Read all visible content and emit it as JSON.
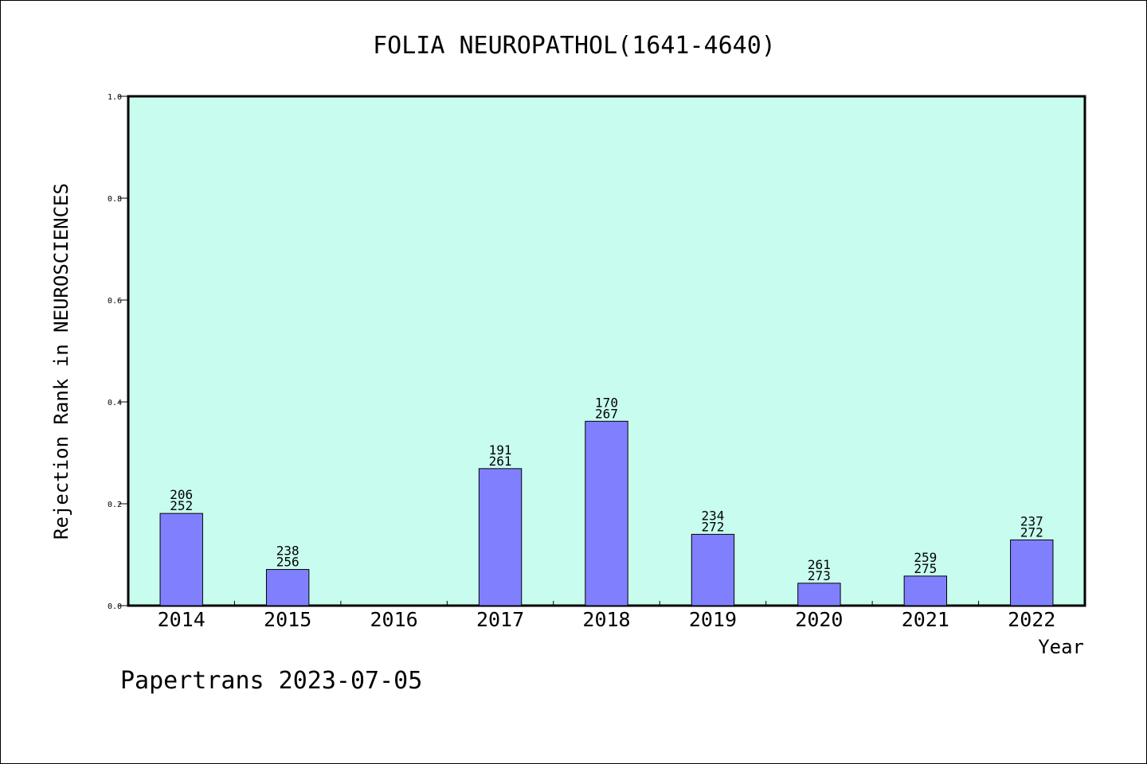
{
  "chart_data": {
    "type": "bar",
    "title": "FOLIA NEUROPATHOL(1641-4640)",
    "xlabel": "Year",
    "ylabel": "Rejection Rank in NEUROSCIENCES",
    "ylim": [
      0,
      1.0
    ],
    "yticks": [
      "0.0",
      "0.2",
      "0.4",
      "0.6",
      "0.8",
      "1.0"
    ],
    "categories": [
      "2014",
      "2015",
      "2016",
      "2017",
      "2018",
      "2019",
      "2020",
      "2021",
      "2022"
    ],
    "values": [
      0.181,
      0.071,
      null,
      0.269,
      0.362,
      0.14,
      0.044,
      0.058,
      0.129
    ],
    "bar_labels": [
      [
        "206",
        "252"
      ],
      [
        "238",
        "256"
      ],
      null,
      [
        "191",
        "261"
      ],
      [
        "170",
        "267"
      ],
      [
        "234",
        "272"
      ],
      [
        "261",
        "273"
      ],
      [
        "259",
        "275"
      ],
      [
        "237",
        "272"
      ]
    ],
    "colors": {
      "plot_background": "#c8fcee",
      "bar_fill": "#8080ff",
      "bar_stroke": "#000000"
    },
    "grid": false
  },
  "footer": {
    "text": "Papertrans 2023-07-05"
  }
}
